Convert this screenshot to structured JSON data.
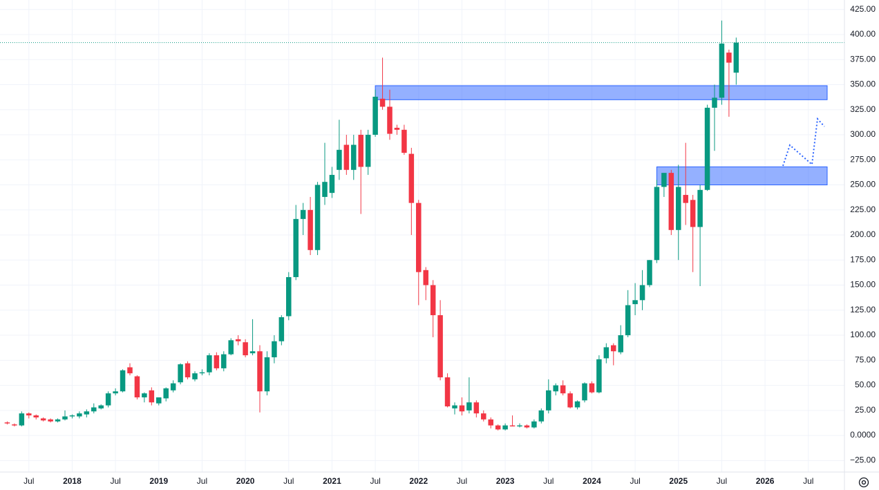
{
  "chart_data": {
    "type": "candlestick",
    "up_color": "#089981",
    "down_color": "#f23645",
    "x": [
      "2017-04",
      "2017-05",
      "2017-06",
      "2017-07",
      "2017-08",
      "2017-09",
      "2017-10",
      "2017-11",
      "2017-12",
      "2018-01",
      "2018-02",
      "2018-03",
      "2018-04",
      "2018-05",
      "2018-06",
      "2018-07",
      "2018-08",
      "2018-09",
      "2018-10",
      "2018-11",
      "2018-12",
      "2019-01",
      "2019-02",
      "2019-03",
      "2019-04",
      "2019-05",
      "2019-06",
      "2019-07",
      "2019-08",
      "2019-09",
      "2019-10",
      "2019-11",
      "2019-12",
      "2020-01",
      "2020-02",
      "2020-03",
      "2020-04",
      "2020-05",
      "2020-06",
      "2020-07",
      "2020-08",
      "2020-09",
      "2020-10",
      "2020-11",
      "2020-12",
      "2021-01",
      "2021-02",
      "2021-03",
      "2021-04",
      "2021-05",
      "2021-06",
      "2021-07",
      "2021-08",
      "2021-09",
      "2021-10",
      "2021-11",
      "2021-12",
      "2022-01",
      "2022-02",
      "2022-03",
      "2022-04",
      "2022-05",
      "2022-06",
      "2022-07",
      "2022-08",
      "2022-09",
      "2022-10",
      "2022-11",
      "2022-12",
      "2023-01",
      "2023-02",
      "2023-03",
      "2023-04",
      "2023-05",
      "2023-06",
      "2023-07",
      "2023-08",
      "2023-09",
      "2023-10",
      "2023-11",
      "2023-12",
      "2024-01",
      "2024-02",
      "2024-03",
      "2024-04",
      "2024-05",
      "2024-06",
      "2024-07",
      "2024-08",
      "2024-09",
      "2024-10",
      "2024-11",
      "2024-12",
      "2025-01",
      "2025-02",
      "2025-03",
      "2025-04",
      "2025-05",
      "2025-06",
      "2025-07",
      "2025-08",
      "2025-09"
    ],
    "open": [
      13,
      11,
      10,
      22,
      20,
      17,
      16,
      14,
      16,
      19,
      19,
      21,
      24,
      27,
      30,
      42,
      44,
      68,
      59,
      38,
      45,
      32,
      37,
      45,
      53,
      72,
      56,
      62,
      63,
      80,
      67,
      81,
      96,
      93,
      82,
      84,
      44,
      78,
      94,
      119,
      158,
      216,
      225,
      185,
      238,
      242,
      265,
      290,
      265,
      300,
      268,
      300,
      336,
      328,
      307,
      305,
      281,
      232,
      165,
      150,
      120,
      58,
      27,
      30,
      25,
      33,
      22,
      16,
      10,
      6,
      10,
      9,
      10,
      8,
      14,
      25,
      44,
      50,
      42,
      28,
      35,
      52,
      43,
      77,
      90,
      83,
      100,
      131,
      135,
      150,
      175,
      248,
      262,
      205,
      240,
      235,
      208,
      245,
      327,
      337,
      382,
      362
    ],
    "high": [
      14,
      12,
      24,
      23,
      21,
      18,
      17,
      17,
      25,
      21,
      24,
      26,
      32,
      31,
      44,
      47,
      66,
      72,
      60,
      43,
      48,
      38,
      48,
      55,
      72,
      74,
      64,
      66,
      82,
      83,
      84,
      97,
      100,
      96,
      116,
      90,
      84,
      100,
      120,
      163,
      230,
      232,
      238,
      253,
      292,
      268,
      315,
      300,
      300,
      305,
      305,
      345,
      377,
      345,
      310,
      310,
      287,
      235,
      168,
      155,
      135,
      62,
      33,
      38,
      58,
      35,
      25,
      18,
      11,
      12,
      20,
      12,
      11,
      16,
      27,
      56,
      52,
      55,
      44,
      35,
      53,
      54,
      80,
      92,
      92,
      110,
      145,
      152,
      165,
      175,
      255,
      262,
      265,
      270,
      292,
      240,
      250,
      330,
      350,
      414,
      385,
      397
    ],
    "low": [
      11,
      9,
      9,
      17,
      16,
      14,
      13,
      13,
      15,
      17,
      17,
      18,
      22,
      26,
      28,
      40,
      43,
      60,
      36,
      33,
      30,
      30,
      34,
      43,
      51,
      56,
      54,
      60,
      60,
      65,
      64,
      80,
      90,
      78,
      80,
      23,
      40,
      72,
      90,
      115,
      155,
      200,
      180,
      180,
      230,
      237,
      255,
      260,
      255,
      221,
      260,
      298,
      325,
      295,
      300,
      280,
      200,
      130,
      135,
      98,
      55,
      28,
      21,
      20,
      22,
      18,
      14,
      7,
      5,
      5,
      9,
      8,
      7,
      7,
      12,
      22,
      40,
      40,
      27,
      26,
      33,
      42,
      42,
      72,
      70,
      81,
      98,
      120,
      125,
      148,
      172,
      238,
      200,
      175,
      210,
      163,
      149,
      244,
      284,
      330,
      318,
      350
    ],
    "close": [
      12,
      10,
      22,
      20,
      18,
      15,
      14,
      16,
      19,
      20,
      22,
      24,
      28,
      30,
      42,
      44,
      65,
      62,
      38,
      42,
      33,
      38,
      47,
      52,
      71,
      58,
      62,
      63,
      80,
      67,
      81,
      95,
      94,
      80,
      84,
      44,
      78,
      94,
      118,
      158,
      216,
      225,
      185,
      250,
      253,
      260,
      285,
      265,
      290,
      268,
      300,
      338,
      328,
      301,
      305,
      282,
      232,
      163,
      150,
      120,
      58,
      29,
      30,
      24,
      33,
      22,
      16,
      10,
      6,
      10,
      9,
      10,
      8,
      14,
      25,
      45,
      50,
      42,
      28,
      34,
      52,
      43,
      76,
      88,
      84,
      100,
      130,
      135,
      150,
      175,
      248,
      262,
      205,
      248,
      232,
      208,
      245,
      327,
      337,
      391,
      372,
      392
    ],
    "zones": [
      {
        "low": 335,
        "high": 349,
        "start": "2021-07"
      },
      {
        "low": 250,
        "high": 268,
        "start": "2024-10"
      }
    ],
    "xlim": [
      "2017-03",
      "2026-12"
    ],
    "xticks": [
      {
        "value": "2017-07",
        "label": "Jul"
      },
      {
        "value": "2018-01",
        "label": "2018"
      },
      {
        "value": "2018-07",
        "label": "Jul"
      },
      {
        "value": "2019-01",
        "label": "2019"
      },
      {
        "value": "2019-07",
        "label": "Jul"
      },
      {
        "value": "2020-01",
        "label": "2020"
      },
      {
        "value": "2020-07",
        "label": "Jul"
      },
      {
        "value": "2021-01",
        "label": "2021"
      },
      {
        "value": "2021-07",
        "label": "Jul"
      },
      {
        "value": "2022-01",
        "label": "2022"
      },
      {
        "value": "2022-07",
        "label": "Jul"
      },
      {
        "value": "2023-01",
        "label": "2023"
      },
      {
        "value": "2023-07",
        "label": "Jul"
      },
      {
        "value": "2024-01",
        "label": "2024"
      },
      {
        "value": "2024-07",
        "label": "Jul"
      },
      {
        "value": "2025-01",
        "label": "2025"
      },
      {
        "value": "2025-07",
        "label": "Jul"
      },
      {
        "value": "2026-01",
        "label": "2026"
      },
      {
        "value": "2026-07",
        "label": "Jul"
      }
    ],
    "ylim": [
      -36.5,
      434.5
    ],
    "yticks": [
      {
        "value": -25,
        "label": "−25.00"
      },
      {
        "value": 0,
        "label": "0.0000"
      },
      {
        "value": 25,
        "label": "25.00"
      },
      {
        "value": 50,
        "label": "50.00"
      },
      {
        "value": 75,
        "label": "75.00"
      },
      {
        "value": 100,
        "label": "100.00"
      },
      {
        "value": 125,
        "label": "125.00"
      },
      {
        "value": 150,
        "label": "150.00"
      },
      {
        "value": 175,
        "label": "175.00"
      },
      {
        "value": 200,
        "label": "200.00"
      },
      {
        "value": 225,
        "label": "225.00"
      },
      {
        "value": 250,
        "label": "250.00"
      },
      {
        "value": 275,
        "label": "275.00"
      },
      {
        "value": 300,
        "label": "300.00"
      },
      {
        "value": 325,
        "label": "325.00"
      },
      {
        "value": 350,
        "label": "350.00"
      },
      {
        "value": 375,
        "label": "375.00"
      },
      {
        "value": 400,
        "label": "400.00"
      },
      {
        "value": 425,
        "label": "425.00"
      }
    ],
    "grid": true
  }
}
